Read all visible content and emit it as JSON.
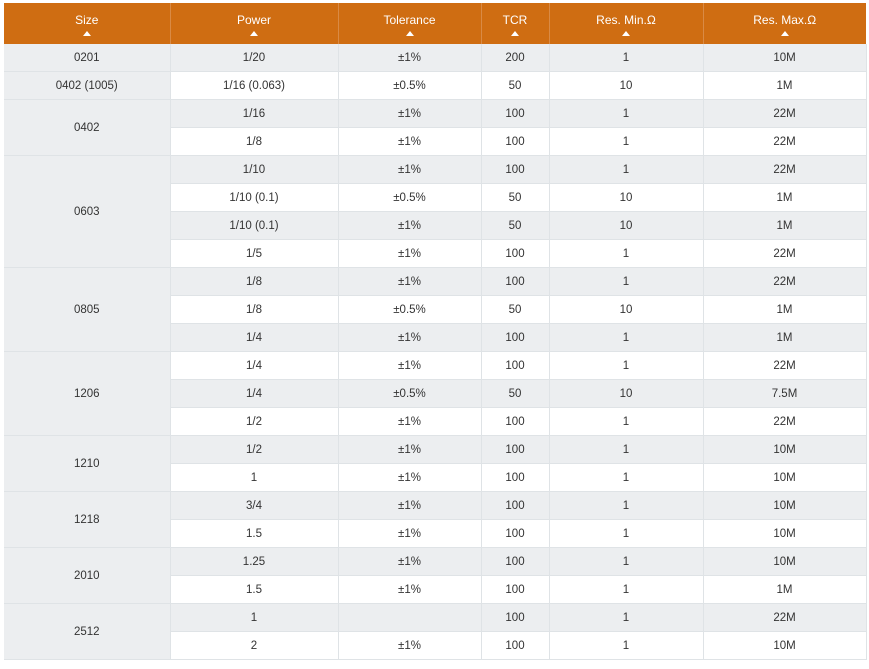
{
  "table": {
    "headers": [
      {
        "label": "Size",
        "name": "size"
      },
      {
        "label": "Power",
        "name": "power"
      },
      {
        "label": "Tolerance",
        "name": "tolerance"
      },
      {
        "label": "TCR",
        "name": "tcr"
      },
      {
        "label": "Res. Min.Ω",
        "name": "res-min"
      },
      {
        "label": "Res. Max.Ω",
        "name": "res-max"
      }
    ],
    "groups": [
      {
        "size": "0201",
        "rows": [
          {
            "power": "1/20",
            "tolerance": "±1%",
            "tcr": "200",
            "res_min": "1",
            "res_max": "10M"
          }
        ]
      },
      {
        "size": "0402 (1005)",
        "rows": [
          {
            "power": "1/16 (0.063)",
            "tolerance": "±0.5%",
            "tcr": "50",
            "res_min": "10",
            "res_max": "1M"
          }
        ]
      },
      {
        "size": "0402",
        "rows": [
          {
            "power": "1/16",
            "tolerance": "±1%",
            "tcr": "100",
            "res_min": "1",
            "res_max": "22M"
          },
          {
            "power": "1/8",
            "tolerance": "±1%",
            "tcr": "100",
            "res_min": "1",
            "res_max": "22M"
          }
        ]
      },
      {
        "size": "0603",
        "rows": [
          {
            "power": "1/10",
            "tolerance": "±1%",
            "tcr": "100",
            "res_min": "1",
            "res_max": "22M"
          },
          {
            "power": "1/10 (0.1)",
            "tolerance": "±0.5%",
            "tcr": "50",
            "res_min": "10",
            "res_max": "1M"
          },
          {
            "power": "1/10 (0.1)",
            "tolerance": "±1%",
            "tcr": "50",
            "res_min": "10",
            "res_max": "1M"
          },
          {
            "power": "1/5",
            "tolerance": "±1%",
            "tcr": "100",
            "res_min": "1",
            "res_max": "22M"
          }
        ]
      },
      {
        "size": "0805",
        "rows": [
          {
            "power": "1/8",
            "tolerance": "±1%",
            "tcr": "100",
            "res_min": "1",
            "res_max": "22M"
          },
          {
            "power": "1/8",
            "tolerance": "±0.5%",
            "tcr": "50",
            "res_min": "10",
            "res_max": "1M"
          },
          {
            "power": "1/4",
            "tolerance": "±1%",
            "tcr": "100",
            "res_min": "1",
            "res_max": "1M"
          }
        ]
      },
      {
        "size": "1206",
        "rows": [
          {
            "power": "1/4",
            "tolerance": "±1%",
            "tcr": "100",
            "res_min": "1",
            "res_max": "22M"
          },
          {
            "power": "1/4",
            "tolerance": "±0.5%",
            "tcr": "50",
            "res_min": "10",
            "res_max": "7.5M"
          },
          {
            "power": "1/2",
            "tolerance": "±1%",
            "tcr": "100",
            "res_min": "1",
            "res_max": "22M"
          }
        ]
      },
      {
        "size": "1210",
        "rows": [
          {
            "power": "1/2",
            "tolerance": "±1%",
            "tcr": "100",
            "res_min": "1",
            "res_max": "10M"
          },
          {
            "power": "1",
            "tolerance": "±1%",
            "tcr": "100",
            "res_min": "1",
            "res_max": "10M"
          }
        ]
      },
      {
        "size": "1218",
        "rows": [
          {
            "power": "3/4",
            "tolerance": "±1%",
            "tcr": "100",
            "res_min": "1",
            "res_max": "10M"
          },
          {
            "power": "1.5",
            "tolerance": "±1%",
            "tcr": "100",
            "res_min": "1",
            "res_max": "10M"
          }
        ]
      },
      {
        "size": "2010",
        "rows": [
          {
            "power": "1.25",
            "tolerance": "±1%",
            "tcr": "100",
            "res_min": "1",
            "res_max": "10M"
          },
          {
            "power": "1.5",
            "tolerance": "±1%",
            "tcr": "100",
            "res_min": "1",
            "res_max": "1M"
          }
        ]
      },
      {
        "size": "2512",
        "rows": [
          {
            "power": "1",
            "tolerance": "",
            "tcr": "100",
            "res_min": "1",
            "res_max": "22M"
          },
          {
            "power": "2",
            "tolerance": "±1%",
            "tcr": "100",
            "res_min": "1",
            "res_max": "10M"
          }
        ]
      }
    ]
  },
  "colors": {
    "header_bg": "#cf6d12",
    "header_text": "#ffffff",
    "row_shade": "#eceef0",
    "row_plain": "#ffffff",
    "border": "#dfe3e6"
  },
  "icons": {
    "sort": "sort-up-icon"
  }
}
